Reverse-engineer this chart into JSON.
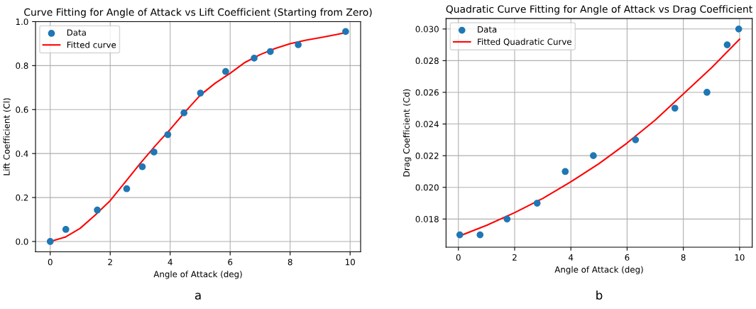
{
  "chart_data": [
    {
      "type": "scatter",
      "title": "Curve Fitting for Angle of Attack vs Lift Coefficient (Starting from Zero)",
      "xlabel": "Angle of Attack (deg)",
      "ylabel": "Lift Coefficient (Cl)",
      "annotations": [
        "a"
      ],
      "xlim": [
        -0.49,
        10.35
      ],
      "ylim": [
        -0.047,
        1.0
      ],
      "xticks": [
        0,
        2,
        4,
        6,
        8,
        10
      ],
      "yticks": [
        {
          "value": 0,
          "label": "0.0"
        },
        {
          "value": 0.2,
          "label": "0.2"
        },
        {
          "value": 0.4,
          "label": "0.4"
        },
        {
          "value": 0.6,
          "label": "0.6"
        },
        {
          "value": 0.8,
          "label": "0.8"
        },
        {
          "value": 1.0,
          "label": "1.0"
        }
      ],
      "grid": true,
      "legend": "top left",
      "series": [
        {
          "name": "Data",
          "marker": "circle",
          "color": "#1f77b4",
          "x": [
            0,
            0.52,
            1.57,
            2.55,
            3.07,
            3.46,
            3.92,
            4.46,
            5.01,
            5.85,
            6.8,
            7.34,
            8.27,
            9.85
          ],
          "values": [
            0,
            0.055,
            0.143,
            0.24,
            0.34,
            0.407,
            0.486,
            0.585,
            0.675,
            0.773,
            0.834,
            0.864,
            0.895,
            0.955
          ]
        },
        {
          "name": "Fitted curve",
          "type": "line",
          "color": "#ff0000",
          "line_style": "solid",
          "x": [
            0,
            0.5,
            1,
            1.5,
            2,
            2.5,
            3,
            3.5,
            4,
            4.5,
            5,
            5.5,
            6,
            6.5,
            7,
            7.5,
            8,
            8.5,
            9,
            9.5,
            9.85
          ],
          "values": [
            0,
            0.02,
            0.06,
            0.12,
            0.186,
            0.27,
            0.355,
            0.435,
            0.51,
            0.59,
            0.665,
            0.72,
            0.765,
            0.815,
            0.85,
            0.878,
            0.9,
            0.915,
            0.927,
            0.94,
            0.95
          ]
        }
      ]
    },
    {
      "type": "scatter",
      "title": "Quadratic Curve Fitting for Angle of Attack vs Drag Coefficient",
      "xlabel": "Angle of Attack (deg)",
      "ylabel": "Drag Coefficient (Cd)",
      "annotations": [
        "b"
      ],
      "xlim": [
        -0.44,
        10.45
      ],
      "ylim": [
        0.01622,
        0.03066
      ],
      "xticks": [
        0,
        2,
        4,
        6,
        8,
        10
      ],
      "yticks": [
        {
          "value": 0.018,
          "label": "0.018"
        },
        {
          "value": 0.02,
          "label": "0.020"
        },
        {
          "value": 0.022,
          "label": "0.022"
        },
        {
          "value": 0.024,
          "label": "0.024"
        },
        {
          "value": 0.026,
          "label": "0.026"
        },
        {
          "value": 0.028,
          "label": "0.028"
        },
        {
          "value": 0.03,
          "label": "0.030"
        }
      ],
      "grid": true,
      "legend": "top left",
      "series": [
        {
          "name": "Data",
          "marker": "circle",
          "color": "#1f77b4",
          "x": [
            0.05,
            0.77,
            1.73,
            2.8,
            3.8,
            4.8,
            6.3,
            7.7,
            8.84,
            9.56,
            9.97
          ],
          "values": [
            0.017,
            0.017,
            0.018,
            0.019,
            0.021,
            0.022,
            0.023,
            0.025,
            0.026,
            0.029,
            0.03
          ]
        },
        {
          "name": "Fitted Quadratic Curve",
          "type": "line",
          "color": "#ff0000",
          "line_style": "solid",
          "x": [
            0,
            1,
            2,
            3,
            4,
            5,
            6,
            7,
            8,
            9,
            10
          ],
          "values": [
            0.0169,
            0.0176,
            0.0184,
            0.0193,
            0.02035,
            0.0215,
            0.0228,
            0.02425,
            0.0259,
            0.02755,
            0.02935
          ]
        }
      ]
    }
  ]
}
